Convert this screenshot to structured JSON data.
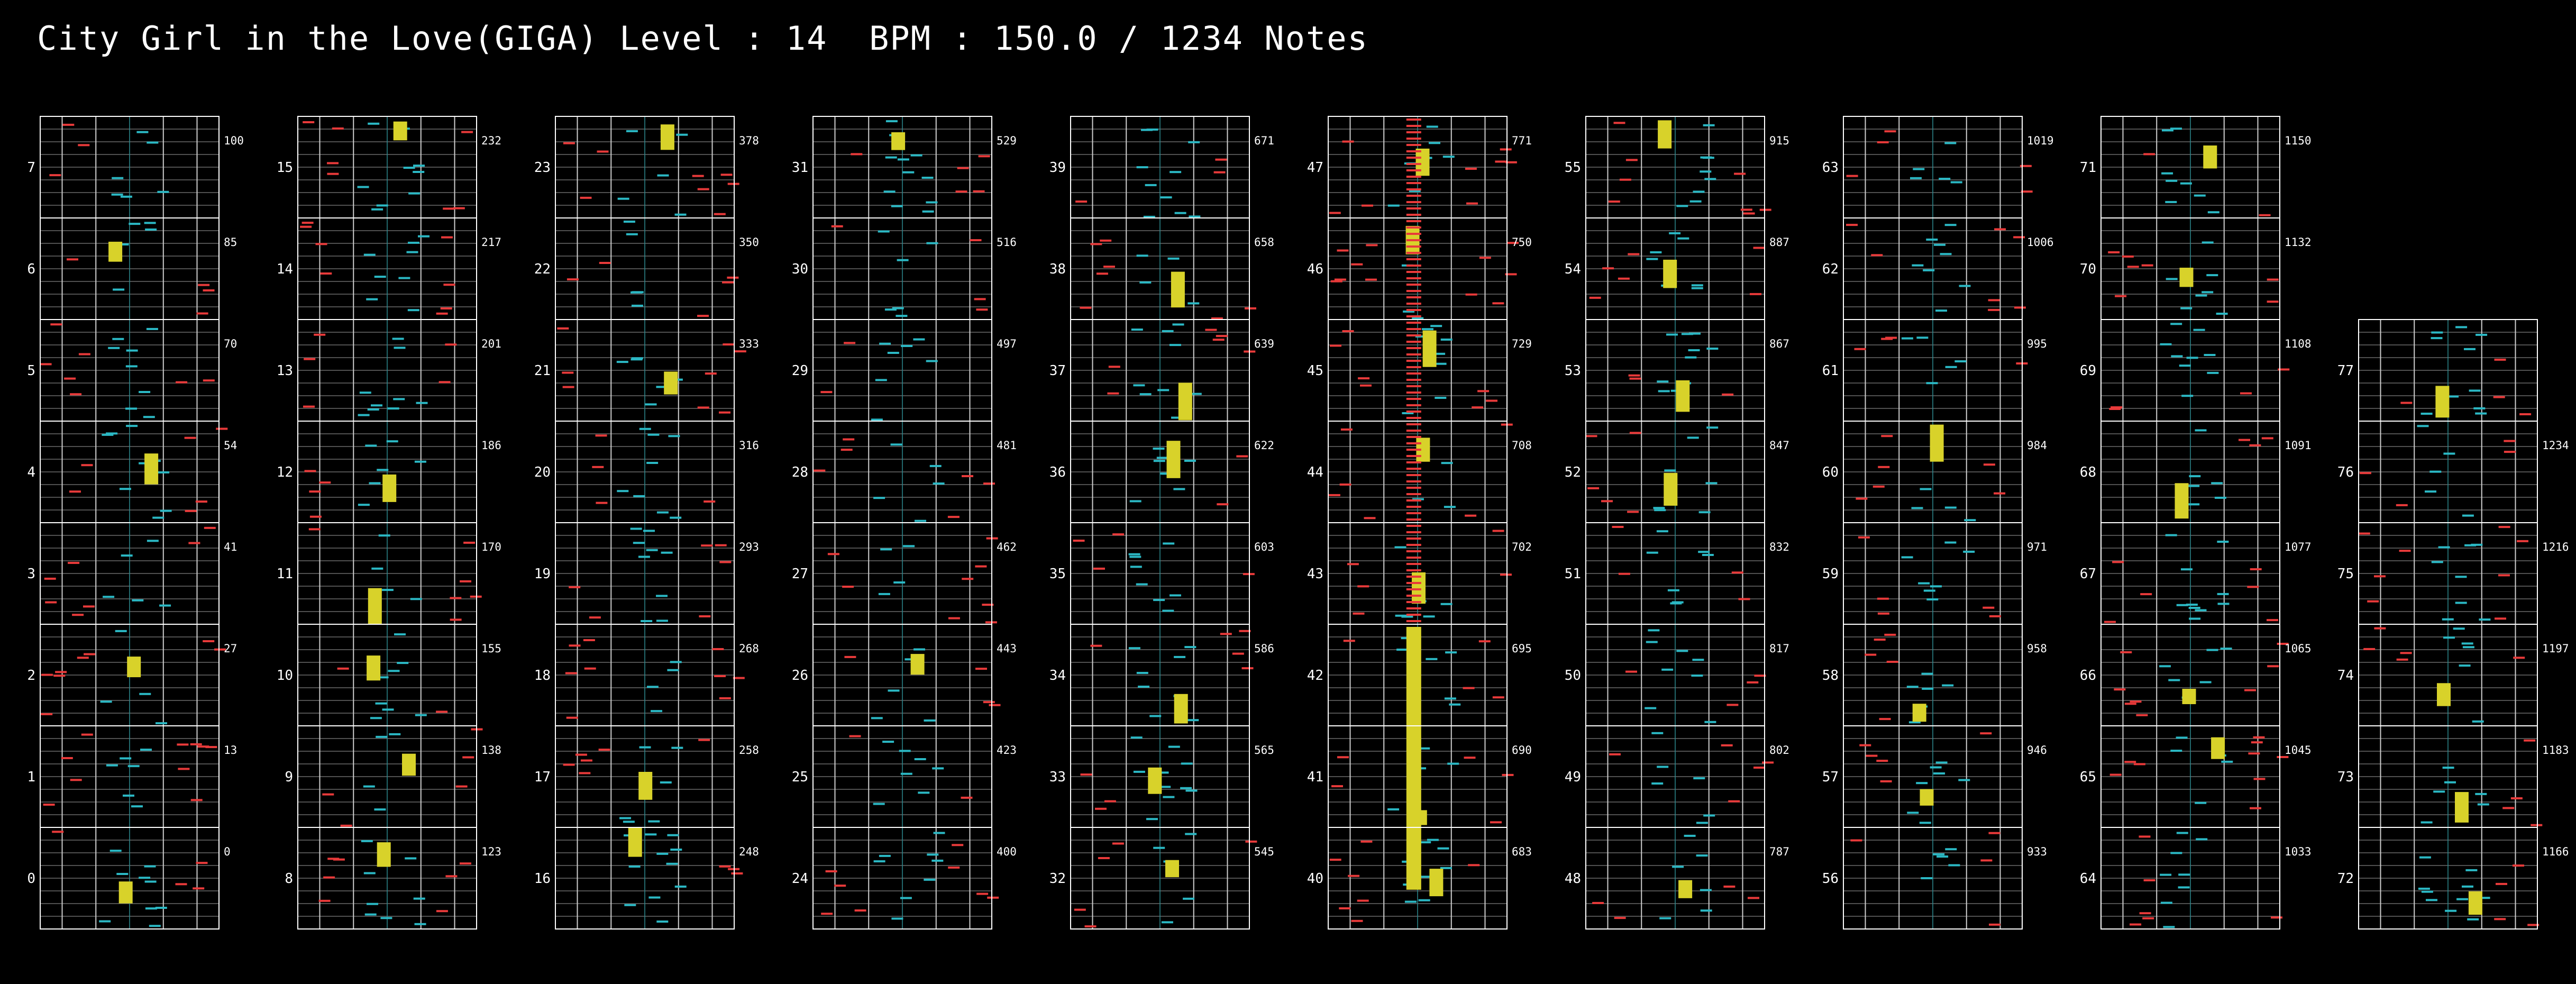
{
  "header": {
    "title": "City Girl in the Love(GIGA) Level : 14  BPM : 150.0 / 1234 Notes"
  },
  "colors": {
    "background": "#000000",
    "frame": "#ffffff",
    "beat_line": "#6a6a6a",
    "note_red": "#e83a3a",
    "note_cyan": "#2bb8c4",
    "hold_yellow": "#d8d22a",
    "lane_center": "#2d8a90"
  },
  "chart_data": {
    "type": "note-chart",
    "song": "City Girl in the Love(GIGA)",
    "level": 14,
    "bpm": 150.0,
    "total_notes": 1234,
    "columns": [
      {
        "measures": [
          7,
          6,
          5,
          4,
          3,
          2,
          1,
          0
        ],
        "counts": [
          100,
          85,
          70,
          54,
          41,
          27,
          13,
          0
        ]
      },
      {
        "measures": [
          15,
          14,
          13,
          12,
          11,
          10,
          9,
          8
        ],
        "counts": [
          232,
          217,
          201,
          186,
          170,
          155,
          138,
          123
        ]
      },
      {
        "measures": [
          23,
          22,
          21,
          20,
          19,
          18,
          17,
          16
        ],
        "counts": [
          378,
          350,
          333,
          316,
          293,
          268,
          258,
          248
        ]
      },
      {
        "measures": [
          31,
          30,
          29,
          28,
          27,
          26,
          25,
          24
        ],
        "counts": [
          529,
          516,
          497,
          481,
          462,
          443,
          423,
          400
        ]
      },
      {
        "measures": [
          39,
          38,
          37,
          36,
          35,
          34,
          33,
          32
        ],
        "counts": [
          671,
          658,
          639,
          622,
          603,
          586,
          565,
          545
        ]
      },
      {
        "measures": [
          47,
          46,
          45,
          44,
          43,
          42,
          41,
          40
        ],
        "counts": [
          771,
          750,
          729,
          708,
          702,
          695,
          690,
          683
        ]
      },
      {
        "measures": [
          55,
          54,
          53,
          52,
          51,
          50,
          49,
          48
        ],
        "counts": [
          915,
          887,
          867,
          847,
          832,
          817,
          802,
          787
        ]
      },
      {
        "measures": [
          63,
          62,
          61,
          60,
          59,
          58,
          57,
          56
        ],
        "counts": [
          1019,
          1006,
          995,
          984,
          971,
          958,
          946,
          933
        ]
      },
      {
        "measures": [
          71,
          70,
          69,
          68,
          67,
          66,
          65,
          64
        ],
        "counts": [
          1150,
          1132,
          1108,
          1091,
          1077,
          1065,
          1045,
          1033
        ]
      },
      {
        "measures": [
          77,
          76,
          75,
          74,
          73,
          72
        ],
        "counts": [
          "",
          1234,
          1216,
          1197,
          1183,
          1166
        ]
      }
    ]
  }
}
